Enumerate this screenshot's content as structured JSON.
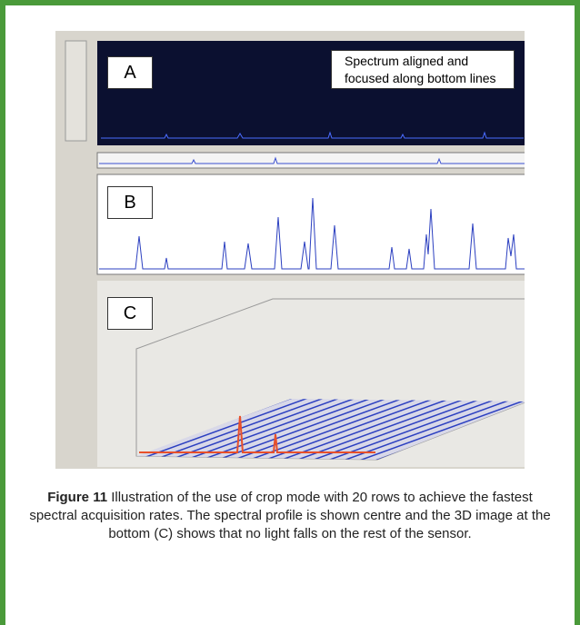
{
  "figure": {
    "panels": [
      {
        "label": "A",
        "note": "Spectrum aligned and focused along bottom lines"
      },
      {
        "label": "B"
      },
      {
        "label": "C"
      }
    ],
    "caption": {
      "number": "Figure 11",
      "text": "Illustration of the use of crop mode with 20 rows to achieve the fastest spectral acquisition rates. The spectral profile is shown centre and the 3D image at the bottom (C) shows that no light falls on the rest of the sensor."
    }
  }
}
